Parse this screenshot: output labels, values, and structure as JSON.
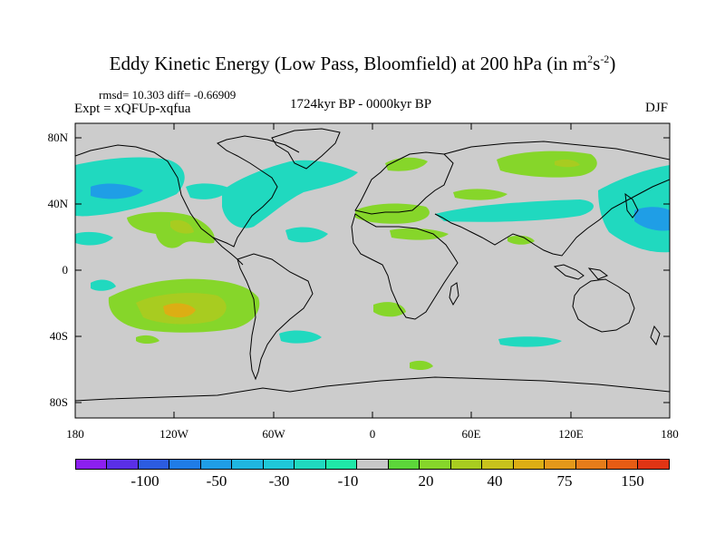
{
  "title": {
    "main": "Eddy Kinetic Energy (Low Pass, Bloomfield) at 200 hPa (in m",
    "sup1": "2",
    "mid": "s",
    "sup2": "-2",
    "end": ")"
  },
  "stats": "rmsd= 10.303 diff= -0.66909",
  "expt": "Expt = xQFUp-xqfua",
  "period": "1724kyr BP - 0000kyr BP",
  "season": "DJF",
  "axes": {
    "lat_labels": [
      "80N",
      "40N",
      "0",
      "40S",
      "80S"
    ],
    "lon_labels": [
      "180",
      "120W",
      "60W",
      "0",
      "60E",
      "120E",
      "180"
    ]
  },
  "colorbar": {
    "colors": [
      "#8c1ff0",
      "#5a2fe6",
      "#2c5ce0",
      "#1f7ce6",
      "#1f9ee6",
      "#1fb6e0",
      "#1fc8d8",
      "#20d9bf",
      "#1fe8a8",
      "#c8c8c8",
      "#5cd63a",
      "#86d62a",
      "#a8cc20",
      "#c8c21c",
      "#dcae14",
      "#e4981a",
      "#e67c1a",
      "#e65c14",
      "#e03414"
    ],
    "labels": [
      "-100",
      "-50",
      "-30",
      "-10",
      "20",
      "40",
      "75",
      "150"
    ]
  },
  "chart_data": {
    "type": "heatmap",
    "title": "Eddy Kinetic Energy (Low Pass, Bloomfield) at 200 hPa (in m^2 s^-2)",
    "x_axis": {
      "range": [
        -180,
        180
      ],
      "ticks": [
        -180,
        -120,
        -60,
        0,
        60,
        120,
        180
      ]
    },
    "y_axis": {
      "range": [
        -90,
        90
      ],
      "ticks": [
        80,
        40,
        0,
        -40,
        -80
      ]
    },
    "levels": [
      -100,
      -50,
      -30,
      -10,
      20,
      40,
      75,
      150
    ],
    "anomaly_regions": [
      {
        "name": "North Pacific negative",
        "lon": [
          -178,
          -120
        ],
        "lat": [
          25,
          58
        ],
        "sign": "negative",
        "magnitude": "-10 to -50"
      },
      {
        "name": "North Atlantic negative",
        "lon": [
          -80,
          -15
        ],
        "lat": [
          25,
          70
        ],
        "sign": "negative",
        "magnitude": "-10 to -30"
      },
      {
        "name": "West Pacific / Japan negative",
        "lon": [
          125,
          180
        ],
        "lat": [
          15,
          55
        ],
        "sign": "negative",
        "magnitude": "-10 to -50"
      },
      {
        "name": "Mexico positive",
        "lon": [
          -130,
          -95
        ],
        "lat": [
          15,
          35
        ],
        "sign": "positive",
        "magnitude": "20 to 40"
      },
      {
        "name": "South Pacific positive",
        "lon": [
          -160,
          -90
        ],
        "lat": [
          -45,
          -10
        ],
        "sign": "positive",
        "magnitude": "20 to 75"
      },
      {
        "name": "Siberia positive",
        "lon": [
          60,
          100
        ],
        "lat": [
          55,
          70
        ],
        "sign": "positive",
        "magnitude": "20 to 40"
      },
      {
        "name": "Mediterranean positive",
        "lon": [
          -5,
          40
        ],
        "lat": [
          28,
          42
        ],
        "sign": "positive",
        "magnitude": "20"
      },
      {
        "name": "South Indian Ocean negative",
        "lon": [
          65,
          95
        ],
        "lat": [
          -48,
          -40
        ],
        "sign": "negative",
        "magnitude": "-10"
      }
    ]
  }
}
